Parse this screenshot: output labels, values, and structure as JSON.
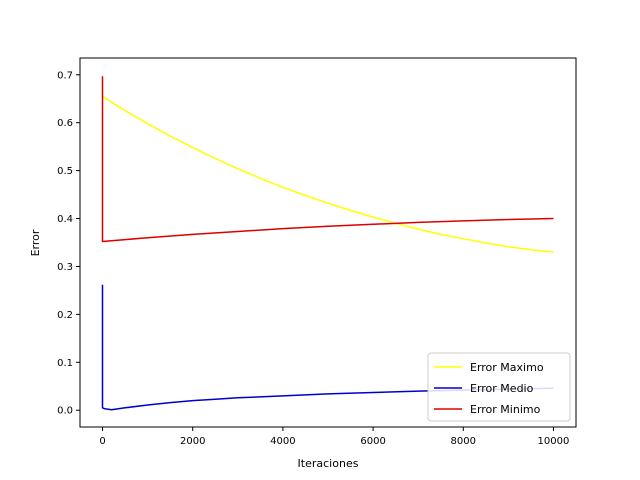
{
  "chart_data": {
    "type": "line",
    "title": "",
    "xlabel": "Iteraciones",
    "ylabel": "Error",
    "xlim": [
      -500,
      10500
    ],
    "ylim": [
      -0.035,
      0.735
    ],
    "xticks": [
      0,
      2000,
      4000,
      6000,
      8000,
      10000
    ],
    "xtick_labels": [
      "0",
      "2000",
      "4000",
      "6000",
      "8000",
      "10000"
    ],
    "yticks": [
      0.0,
      0.1,
      0.2,
      0.3,
      0.4,
      0.5,
      0.6,
      0.7
    ],
    "ytick_labels": [
      "0.0",
      "0.1",
      "0.2",
      "0.3",
      "0.4",
      "0.5",
      "0.6",
      "0.7"
    ],
    "grid": false,
    "legend_position": "lower-right",
    "series": [
      {
        "name": "Error Maximo",
        "color": "#ffff00",
        "x": [
          0,
          500,
          1000,
          1500,
          2000,
          2500,
          3000,
          3500,
          4000,
          4500,
          5000,
          5500,
          6000,
          6500,
          7000,
          7500,
          8000,
          8500,
          9000,
          9500,
          10000
        ],
        "y": [
          0.655,
          0.625,
          0.598,
          0.572,
          0.548,
          0.525,
          0.504,
          0.484,
          0.465,
          0.448,
          0.432,
          0.417,
          0.403,
          0.39,
          0.378,
          0.367,
          0.358,
          0.349,
          0.341,
          0.335,
          0.33
        ]
      },
      {
        "name": "Error Medio",
        "color": "#0000cc",
        "x": [
          0,
          0,
          50,
          200,
          500,
          1000,
          1500,
          2000,
          2500,
          3000,
          4000,
          5000,
          6000,
          7000,
          8000,
          9000,
          10000
        ],
        "y": [
          0.262,
          0.005,
          0.003,
          0.001,
          0.005,
          0.011,
          0.016,
          0.02,
          0.023,
          0.026,
          0.03,
          0.034,
          0.037,
          0.04,
          0.042,
          0.044,
          0.046
        ]
      },
      {
        "name": "Error Minimo",
        "color": "#dd0000",
        "x": [
          0,
          0,
          500,
          1000,
          2000,
          3000,
          4000,
          5000,
          6000,
          7000,
          8000,
          9000,
          10000
        ],
        "y": [
          0.697,
          0.352,
          0.356,
          0.36,
          0.367,
          0.373,
          0.379,
          0.384,
          0.388,
          0.392,
          0.395,
          0.398,
          0.4
        ]
      }
    ]
  }
}
